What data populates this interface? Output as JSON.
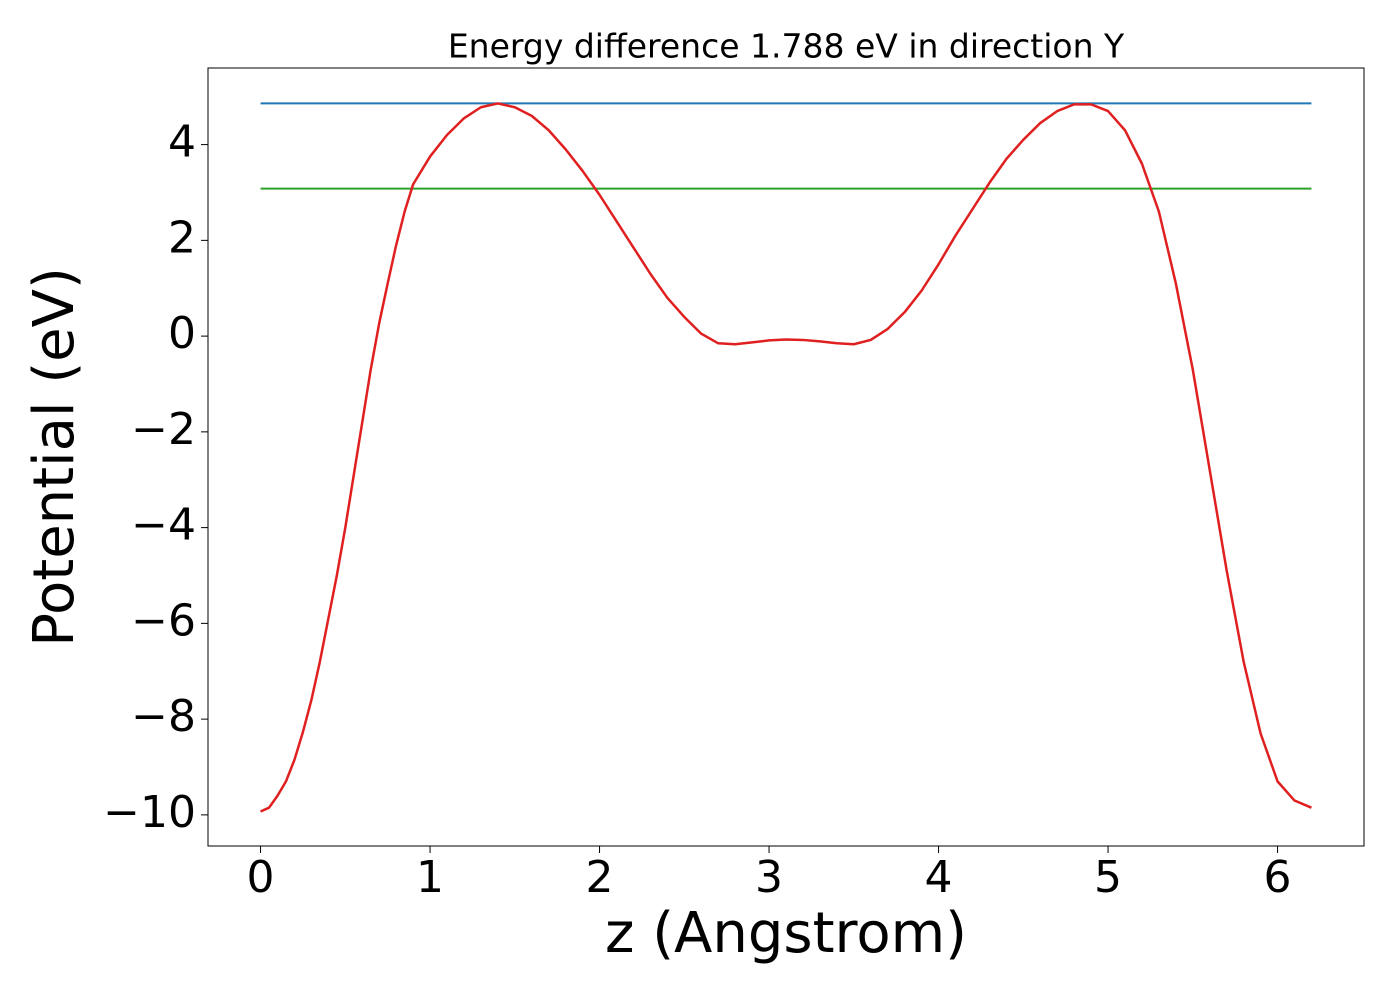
{
  "chart_data": {
    "type": "line",
    "title": "Energy difference 1.788 eV in direction Y",
    "x_label": "z (Angstrom)",
    "y_label": "Potential (eV)",
    "xlim": [
      -0.31,
      6.51
    ],
    "ylim": [
      -10.65,
      5.6
    ],
    "xticks": [
      0,
      1,
      2,
      3,
      4,
      5,
      6
    ],
    "yticks": [
      {
        "value": -10,
        "label": "−10"
      },
      {
        "value": -8,
        "label": "−8"
      },
      {
        "value": -6,
        "label": "−6"
      },
      {
        "value": -4,
        "label": "−4"
      },
      {
        "value": -2,
        "label": "−2"
      },
      0,
      2,
      4
    ],
    "series": [
      {
        "color": "#1f77b4",
        "x": [
          0,
          6.2
        ],
        "values": [
          4.86,
          4.86
        ]
      },
      {
        "color": "#2ca02c",
        "x": [
          0,
          6.2
        ],
        "values": [
          3.08,
          3.08
        ]
      },
      {
        "color": "#e02020",
        "x": [
          0,
          0.05,
          0.1,
          0.15,
          0.2,
          0.25,
          0.3,
          0.35,
          0.4,
          0.45,
          0.5,
          0.55,
          0.6,
          0.65,
          0.7,
          0.75,
          0.8,
          0.85,
          0.9,
          1.0,
          1.1,
          1.2,
          1.3,
          1.4,
          1.5,
          1.6,
          1.7,
          1.8,
          1.9,
          2.0,
          2.1,
          2.2,
          2.3,
          2.4,
          2.5,
          2.6,
          2.7,
          2.8,
          2.9,
          3.0,
          3.1,
          3.2,
          3.3,
          3.4,
          3.5,
          3.6,
          3.7,
          3.8,
          3.9,
          4.0,
          4.1,
          4.2,
          4.3,
          4.4,
          4.5,
          4.6,
          4.7,
          4.8,
          4.9,
          5.0,
          5.1,
          5.2,
          5.3,
          5.4,
          5.5,
          5.6,
          5.7,
          5.8,
          5.9,
          6.0,
          6.1,
          6.2
        ],
        "values": [
          -9.93,
          -9.85,
          -9.6,
          -9.3,
          -8.85,
          -8.27,
          -7.6,
          -6.8,
          -5.9,
          -5.0,
          -4.0,
          -2.9,
          -1.8,
          -0.7,
          0.27,
          1.1,
          1.9,
          2.6,
          3.17,
          3.75,
          4.2,
          4.55,
          4.78,
          4.86,
          4.78,
          4.6,
          4.3,
          3.9,
          3.45,
          2.95,
          2.4,
          1.85,
          1.3,
          0.8,
          0.4,
          0.05,
          -0.15,
          -0.17,
          -0.13,
          -0.09,
          -0.07,
          -0.08,
          -0.11,
          -0.15,
          -0.17,
          -0.08,
          0.15,
          0.5,
          0.95,
          1.5,
          2.1,
          2.65,
          3.2,
          3.7,
          4.1,
          4.45,
          4.7,
          4.84,
          4.84,
          4.7,
          4.3,
          3.6,
          2.6,
          1.1,
          -0.7,
          -2.8,
          -4.9,
          -6.8,
          -8.3,
          -9.3,
          -9.7,
          -9.85
        ]
      }
    ]
  }
}
